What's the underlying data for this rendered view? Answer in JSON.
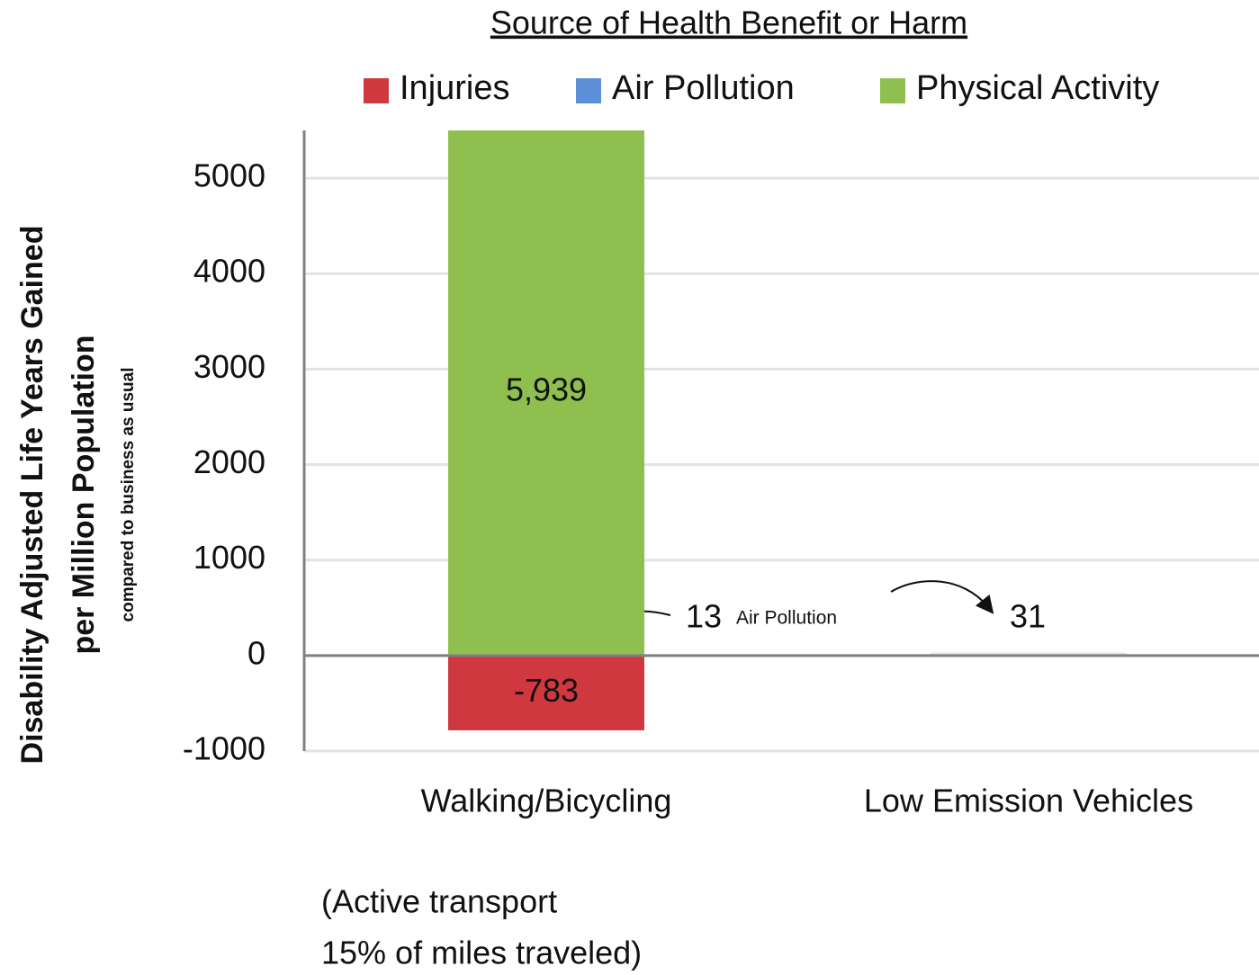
{
  "chart_data": {
    "type": "stacked_bar",
    "legend_title": "Source of Health Benefit or Harm",
    "y_label": [
      "Disability Adjusted Life Years Gained",
      "per  Million Population"
    ],
    "y_sublabel": "compared to business as usual",
    "categories": [
      "Walking/Bicycling",
      "Low Emission Vehicles"
    ],
    "series": [
      {
        "name": "Injuries",
        "color": "#d0383f",
        "values": [
          -783,
          null
        ]
      },
      {
        "name": "Air Pollution",
        "color": "#5b8fd6",
        "values": [
          13,
          31
        ]
      },
      {
        "name": "Physical Activity",
        "color": "#8fc04f",
        "values": [
          5939,
          null
        ],
        "value_labels": [
          "5,939",
          null
        ]
      }
    ],
    "annotations": [
      "Air Pollution",
      "(Active transport",
      "15% of miles traveled)"
    ],
    "ylim": [
      -1000,
      5500
    ],
    "yticks": [
      -1000,
      0,
      1000,
      2000,
      3000,
      4000,
      5000
    ],
    "grid": true,
    "legend": "top"
  }
}
